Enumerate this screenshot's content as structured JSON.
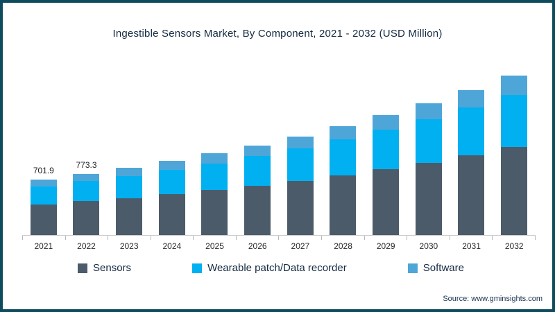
{
  "title": "Ingestible Sensors Market, By Component, 2021 - 2032 (USD Million)",
  "source_note": "Source: www.gminsights.com",
  "colors": {
    "frame_border": "#0e4c5d",
    "title_text": "#142a42",
    "axis_line": "#cccccc",
    "sensors": "#4c5b69",
    "wearable_patch": "#00b0f0",
    "software": "#4ea6d8"
  },
  "chart_data": {
    "type": "bar",
    "stacked": true,
    "title": "Ingestible Sensors Market, By Component, 2021 - 2032 (USD Million)",
    "xlabel": "",
    "ylabel": "USD Million",
    "ylim": [
      0,
      2100
    ],
    "grid": false,
    "legend_position": "bottom",
    "categories": [
      "2021",
      "2022",
      "2023",
      "2024",
      "2025",
      "2026",
      "2027",
      "2028",
      "2029",
      "2030",
      "2031",
      "2032"
    ],
    "series": [
      {
        "name": "Sensors",
        "color": "#4c5b69",
        "values": [
          385,
          425,
          468,
          515,
          567,
          622,
          685,
          754,
          831,
          913,
          1007,
          1108
        ]
      },
      {
        "name": "Wearable patch/Data recorder",
        "color": "#00b0f0",
        "values": [
          232,
          255,
          280,
          308,
          339,
          372,
          410,
          451,
          497,
          547,
          603,
          663
        ]
      },
      {
        "name": "Software",
        "color": "#4ea6d8",
        "values": [
          84.9,
          93.3,
          102,
          112,
          124,
          136,
          150,
          165,
          182,
          200,
          220,
          244
        ]
      }
    ],
    "totals": [
      701.9,
      773.3,
      850,
      935,
      1030,
      1130,
      1245,
      1370,
      1510,
      1660,
      1830,
      2015
    ],
    "data_labels": [
      "701.9",
      "773.3",
      null,
      null,
      null,
      null,
      null,
      null,
      null,
      null,
      null,
      null
    ]
  }
}
